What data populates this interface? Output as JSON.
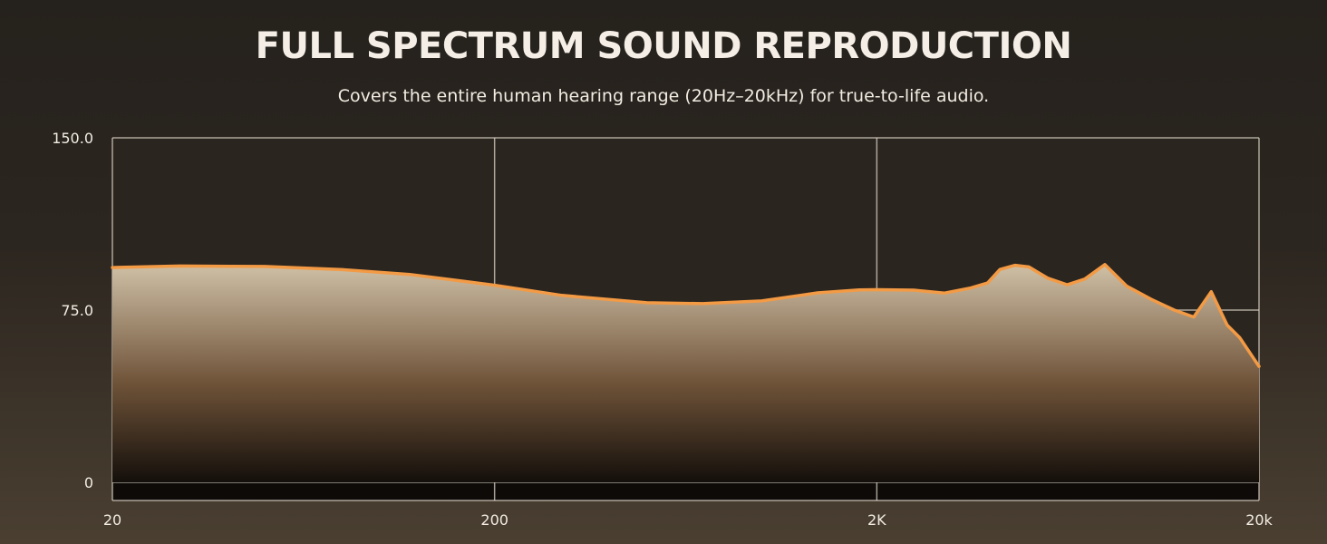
{
  "title": "FULL SPECTRUM SOUND REPRODUCTION",
  "subtitle": "Covers the entire human hearing range (20Hz–20kHz) for true-to-life audio.",
  "colors": {
    "line": "#f39a45",
    "fill_top": "#cfc0a6",
    "fill_mid": "#6e5238",
    "fill_bottom": "#140f0b",
    "grid": "#d9d2c6"
  },
  "chart_data": {
    "type": "area",
    "title": "FULL SPECTRUM SOUND REPRODUCTION",
    "subtitle": "Covers the entire human hearing range (20Hz–20kHz) for true-to-life audio.",
    "xscale": "log",
    "xlim": [
      20,
      20000
    ],
    "ylim": [
      0,
      150
    ],
    "xticks": [
      {
        "value": 20,
        "label": "20"
      },
      {
        "value": 200,
        "label": "200"
      },
      {
        "value": 2000,
        "label": "2K"
      },
      {
        "value": 20000,
        "label": "20k"
      }
    ],
    "yticks": [
      {
        "value": 0,
        "label": "0"
      },
      {
        "value": 75,
        "label": "75.0"
      },
      {
        "value": 150,
        "label": "150.0"
      }
    ],
    "grid": true,
    "series": [
      {
        "x": [
          20,
          30,
          50,
          80,
          120,
          200,
          300,
          500,
          700,
          1000,
          1400,
          1800,
          2000,
          2500,
          3000,
          3500,
          3900,
          4200,
          4600,
          5000,
          5600,
          6300,
          7000,
          7900,
          9000,
          10500,
          12000,
          13500,
          15000,
          16500,
          17800,
          20000
        ],
        "y": [
          93.5,
          94.2,
          94.0,
          92.6,
          90.5,
          85.8,
          81.4,
          78.2,
          77.8,
          79.0,
          82.5,
          83.8,
          83.9,
          83.7,
          82.4,
          84.5,
          86.8,
          92.7,
          94.5,
          93.8,
          88.9,
          86.0,
          88.5,
          94.8,
          85.5,
          79.5,
          75.0,
          72.0,
          83.0,
          68.5,
          63.0,
          50.5
        ]
      }
    ]
  }
}
